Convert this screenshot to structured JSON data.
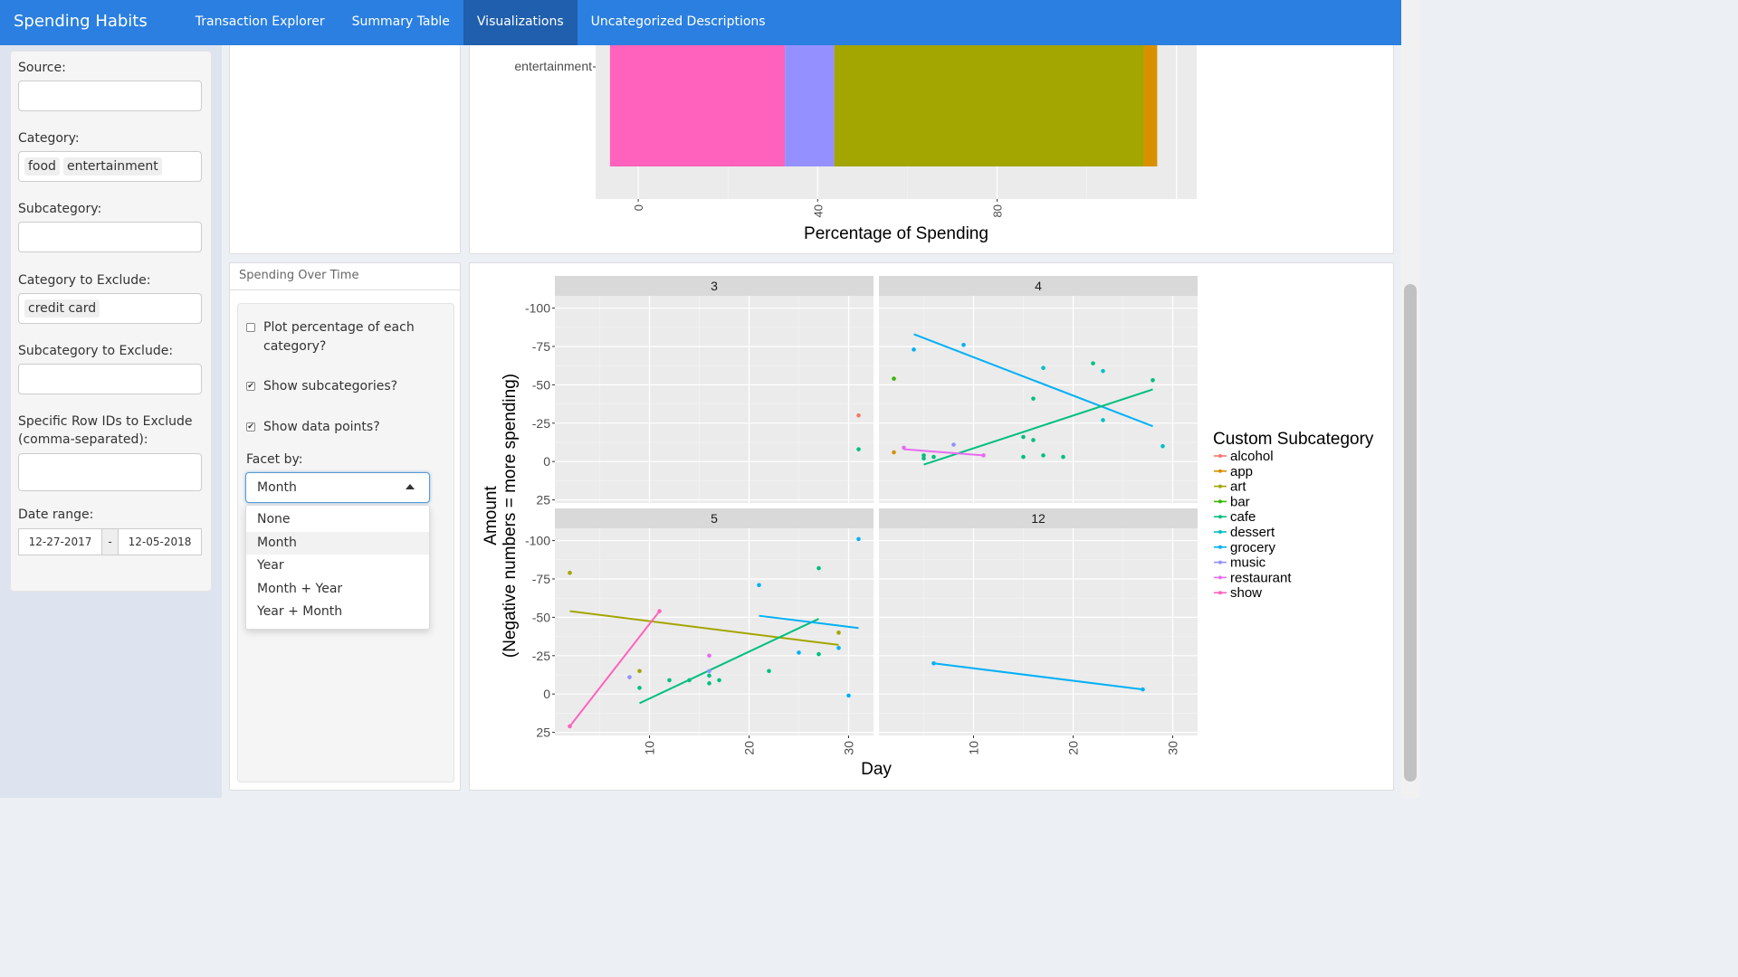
{
  "navbar": {
    "brand": "Spending Habits",
    "tabs": [
      "Transaction Explorer",
      "Summary Table",
      "Visualizations",
      "Uncategorized Descriptions"
    ],
    "active_tab": "Visualizations"
  },
  "sidebar": {
    "source_label": "Source:",
    "source_value": "",
    "category_label": "Category:",
    "category_tags": [
      "food",
      "entertainment"
    ],
    "subcategory_label": "Subcategory:",
    "category_exclude_label": "Category to Exclude:",
    "category_exclude_tags": [
      "credit card"
    ],
    "subcategory_exclude_label": "Subcategory to Exclude:",
    "row_ids_label": "Specific Row IDs to Exclude (comma-separated):",
    "date_label": "Date range:",
    "date_start": "12-27-2017",
    "date_sep": "-",
    "date_end": "12-05-2018"
  },
  "controls": {
    "panel_title": "Spending Over Time",
    "plot_pct_label": "Plot percentage of each category?",
    "plot_pct_checked": false,
    "show_sub_label": "Show subcategories?",
    "show_sub_checked": true,
    "show_points_label": "Show data points?",
    "show_points_checked": true,
    "facet_label": "Facet by:",
    "facet_value": "Month",
    "facet_options": [
      "None",
      "Month",
      "Year",
      "Month + Year",
      "Year + Month"
    ]
  },
  "colors": {
    "alcohol": "#F8766D",
    "app": "#D89000",
    "art": "#A3A500",
    "bar": "#39B600",
    "cafe": "#00BF7D",
    "dessert": "#00BFC4",
    "grocery": "#00B0F6",
    "music": "#9590FF",
    "restaurant": "#E76BF3",
    "show": "#FF62BC"
  },
  "chart_data": [
    {
      "type": "bar",
      "orientation": "horizontal-stacked",
      "categories": [
        "entertainment"
      ],
      "series": [
        {
          "name": "show",
          "values": [
            39
          ]
        },
        {
          "name": "music",
          "values": [
            11
          ]
        },
        {
          "name": "art",
          "values": [
            69
          ]
        },
        {
          "name": "app",
          "values": [
            3
          ]
        }
      ],
      "xlabel": "Percentage of Spending",
      "xticks": [
        "0",
        "40",
        "80"
      ]
    },
    {
      "type": "scatter",
      "facet_strips": [
        "3",
        "4",
        "5",
        "12"
      ],
      "xlabel": "Day",
      "ylabel": "Amount\n(Negative numbers = more spending)",
      "ylabel_line1": "Amount",
      "ylabel_line2": "(Negative numbers = more spending)",
      "xticks": [
        "10",
        "20",
        "30"
      ],
      "yticks": [
        "-100",
        "-75",
        "-50",
        "-25",
        "0",
        "25"
      ],
      "legend_title": "Custom Subcategory",
      "legend": [
        "alcohol",
        "app",
        "art",
        "bar",
        "cafe",
        "dessert",
        "grocery",
        "music",
        "restaurant",
        "show"
      ],
      "facets": [
        {
          "strip": "3",
          "points": [
            {
              "x": 31,
              "y": -30,
              "s": "alcohol"
            },
            {
              "x": 31,
              "y": -8,
              "s": "cafe"
            }
          ],
          "lines": []
        },
        {
          "strip": "4",
          "points": [
            {
              "x": 2,
              "y": -6,
              "s": "app"
            },
            {
              "x": 2,
              "y": -54,
              "s": "bar"
            },
            {
              "x": 4,
              "y": -73,
              "s": "grocery"
            },
            {
              "x": 9,
              "y": -76,
              "s": "grocery"
            },
            {
              "x": 5,
              "y": -4,
              "s": "cafe"
            },
            {
              "x": 5,
              "y": -2,
              "s": "cafe"
            },
            {
              "x": 6,
              "y": -3,
              "s": "cafe"
            },
            {
              "x": 8,
              "y": -11,
              "s": "music"
            },
            {
              "x": 3,
              "y": -9,
              "s": "restaurant"
            },
            {
              "x": 11,
              "y": -4,
              "s": "restaurant"
            },
            {
              "x": 15,
              "y": -16,
              "s": "cafe"
            },
            {
              "x": 16,
              "y": -14,
              "s": "cafe"
            },
            {
              "x": 16,
              "y": -41,
              "s": "cafe"
            },
            {
              "x": 15,
              "y": -3,
              "s": "cafe"
            },
            {
              "x": 17,
              "y": -4,
              "s": "cafe"
            },
            {
              "x": 19,
              "y": -3,
              "s": "cafe"
            },
            {
              "x": 17,
              "y": -61,
              "s": "dessert"
            },
            {
              "x": 22,
              "y": -64,
              "s": "cafe"
            },
            {
              "x": 23,
              "y": -59,
              "s": "dessert"
            },
            {
              "x": 23,
              "y": -27,
              "s": "dessert"
            },
            {
              "x": 28,
              "y": -53,
              "s": "cafe"
            },
            {
              "x": 29,
              "y": -10,
              "s": "dessert"
            }
          ],
          "lines": [
            {
              "s": "grocery",
              "x": [
                4,
                28
              ],
              "y": [
                -83,
                -23
              ]
            },
            {
              "s": "cafe",
              "x": [
                5,
                28
              ],
              "y": [
                2,
                -47
              ]
            },
            {
              "s": "restaurant",
              "x": [
                3,
                11
              ],
              "y": [
                -8,
                -4
              ]
            }
          ]
        },
        {
          "strip": "5",
          "points": [
            {
              "x": 2,
              "y": 21,
              "s": "show"
            },
            {
              "x": 11,
              "y": -54,
              "s": "show"
            },
            {
              "x": 2,
              "y": -79,
              "s": "art"
            },
            {
              "x": 9,
              "y": -15,
              "s": "art"
            },
            {
              "x": 29,
              "y": -40,
              "s": "art"
            },
            {
              "x": 8,
              "y": -11,
              "s": "music"
            },
            {
              "x": 16,
              "y": -15,
              "s": "music"
            },
            {
              "x": 9,
              "y": -4,
              "s": "cafe"
            },
            {
              "x": 12,
              "y": -9,
              "s": "cafe"
            },
            {
              "x": 14,
              "y": -9,
              "s": "cafe"
            },
            {
              "x": 16,
              "y": -12,
              "s": "cafe"
            },
            {
              "x": 16,
              "y": -7,
              "s": "cafe"
            },
            {
              "x": 17,
              "y": -9,
              "s": "cafe"
            },
            {
              "x": 22,
              "y": -15,
              "s": "cafe"
            },
            {
              "x": 27,
              "y": -26,
              "s": "cafe"
            },
            {
              "x": 27,
              "y": -82,
              "s": "cafe"
            },
            {
              "x": 16,
              "y": -25,
              "s": "restaurant"
            },
            {
              "x": 21,
              "y": -71,
              "s": "grocery"
            },
            {
              "x": 25,
              "y": -27,
              "s": "grocery"
            },
            {
              "x": 29,
              "y": -30,
              "s": "grocery"
            },
            {
              "x": 30,
              "y": 1,
              "s": "grocery"
            },
            {
              "x": 31,
              "y": -101,
              "s": "grocery"
            }
          ],
          "lines": [
            {
              "s": "art",
              "x": [
                2,
                29
              ],
              "y": [
                -54,
                -32
              ]
            },
            {
              "s": "show",
              "x": [
                2,
                11
              ],
              "y": [
                21,
                -54
              ]
            },
            {
              "s": "cafe",
              "x": [
                9,
                27
              ],
              "y": [
                6,
                -49
              ]
            },
            {
              "s": "grocery",
              "x": [
                21,
                31
              ],
              "y": [
                -51,
                -43
              ]
            }
          ]
        },
        {
          "strip": "12",
          "points": [
            {
              "x": 6,
              "y": -20,
              "s": "grocery"
            },
            {
              "x": 27,
              "y": -3,
              "s": "grocery"
            }
          ],
          "lines": [
            {
              "s": "grocery",
              "x": [
                6,
                27
              ],
              "y": [
                -20,
                -3
              ]
            }
          ]
        }
      ]
    }
  ]
}
